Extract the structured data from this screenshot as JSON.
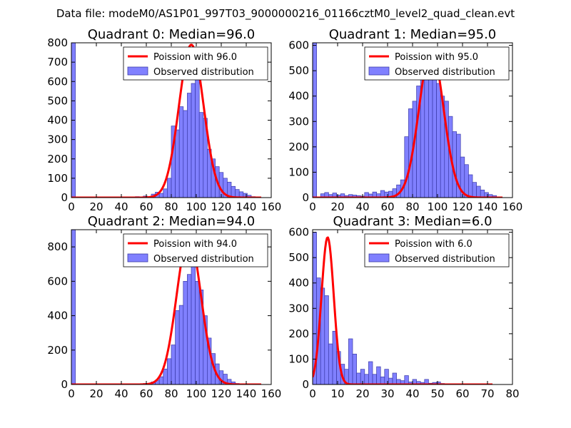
{
  "suptitle": "Data file: modeM0/AS1P01_997T03_9000000216_01166cztM0_level2_quad_clean.evt",
  "colors": {
    "bar_fill": "#8080ff",
    "bar_edge": "#3a3aa8",
    "curve": "#ff0000",
    "axis": "#000000"
  },
  "chart_data": [
    {
      "type": "bar",
      "title": "Quadrant 0: Median=96.0",
      "xlim": [
        0,
        160
      ],
      "ylim": [
        0,
        800
      ],
      "xticks": [
        0,
        20,
        40,
        60,
        80,
        100,
        120,
        140,
        160
      ],
      "yticks": [
        0,
        100,
        200,
        300,
        400,
        500,
        600,
        700,
        800
      ],
      "bin_width": 3.2,
      "bars": [
        [
          0,
          800
        ],
        [
          51.2,
          5
        ],
        [
          57.6,
          8
        ],
        [
          64,
          18
        ],
        [
          67.2,
          28
        ],
        [
          70.4,
          22
        ],
        [
          73.6,
          45
        ],
        [
          76.8,
          100
        ],
        [
          80,
          370
        ],
        [
          83.2,
          350
        ],
        [
          86.4,
          470
        ],
        [
          89.6,
          450
        ],
        [
          92.8,
          540
        ],
        [
          96,
          590
        ],
        [
          99.2,
          700
        ],
        [
          102.4,
          440
        ],
        [
          105.6,
          410
        ],
        [
          108.8,
          250
        ],
        [
          112,
          200
        ],
        [
          115.2,
          160
        ],
        [
          118.4,
          130
        ],
        [
          121.6,
          100
        ],
        [
          124.8,
          80
        ],
        [
          128,
          58
        ],
        [
          131.2,
          42
        ],
        [
          134.4,
          30
        ],
        [
          137.6,
          22
        ],
        [
          140.8,
          12
        ],
        [
          144,
          5
        ]
      ],
      "curve_mean": 96.0,
      "curve_peak": 790,
      "curve_xrange": [
        0,
        152
      ],
      "legend": {
        "curve_label": "Poission with 96.0",
        "bar_label": "Observed distribution"
      }
    },
    {
      "type": "bar",
      "title": "Quadrant 1: Median=95.0",
      "xlim": [
        0,
        160
      ],
      "ylim": [
        0,
        610
      ],
      "xticks": [
        0,
        20,
        40,
        60,
        80,
        100,
        120,
        140,
        160
      ],
      "yticks": [
        0,
        100,
        200,
        300,
        400,
        500,
        600
      ],
      "bin_width": 3.2,
      "bars": [
        [
          0,
          610
        ],
        [
          6.4,
          15
        ],
        [
          9.6,
          20
        ],
        [
          12.8,
          12
        ],
        [
          16,
          18
        ],
        [
          19.2,
          10
        ],
        [
          22.4,
          15
        ],
        [
          25.6,
          8
        ],
        [
          28.8,
          12
        ],
        [
          32,
          10
        ],
        [
          35.2,
          8
        ],
        [
          38.4,
          6
        ],
        [
          41.6,
          20
        ],
        [
          44.8,
          14
        ],
        [
          48,
          22
        ],
        [
          51.2,
          15
        ],
        [
          54.4,
          28
        ],
        [
          57.6,
          22
        ],
        [
          60.8,
          25
        ],
        [
          64,
          35
        ],
        [
          67.2,
          50
        ],
        [
          70.4,
          70
        ],
        [
          73.6,
          240
        ],
        [
          76.8,
          350
        ],
        [
          80,
          380
        ],
        [
          83.2,
          440
        ],
        [
          86.4,
          500
        ],
        [
          89.6,
          540
        ],
        [
          92.8,
          570
        ],
        [
          96,
          480
        ],
        [
          99.2,
          450
        ],
        [
          102.4,
          400
        ],
        [
          105.6,
          380
        ],
        [
          108.8,
          320
        ],
        [
          112,
          260
        ],
        [
          115.2,
          250
        ],
        [
          118.4,
          160
        ],
        [
          121.6,
          130
        ],
        [
          124.8,
          90
        ],
        [
          128,
          60
        ],
        [
          131.2,
          45
        ],
        [
          134.4,
          30
        ],
        [
          137.6,
          20
        ],
        [
          140.8,
          12
        ],
        [
          144,
          8
        ]
      ],
      "curve_mean": 95.0,
      "curve_peak": 585,
      "curve_xrange": [
        0,
        152
      ],
      "legend": {
        "curve_label": "Poission with 95.0",
        "bar_label": "Observed distribution"
      }
    },
    {
      "type": "bar",
      "title": "Quadrant 2: Median=94.0",
      "xlim": [
        0,
        160
      ],
      "ylim": [
        0,
        900
      ],
      "xticks": [
        0,
        20,
        40,
        60,
        80,
        100,
        120,
        140,
        160
      ],
      "yticks": [
        0,
        200,
        400,
        600,
        800
      ],
      "bin_width": 3.2,
      "bars": [
        [
          0,
          900
        ],
        [
          51.2,
          3
        ],
        [
          57.6,
          6
        ],
        [
          64,
          15
        ],
        [
          67.2,
          25
        ],
        [
          70.4,
          45
        ],
        [
          73.6,
          90
        ],
        [
          76.8,
          150
        ],
        [
          80,
          230
        ],
        [
          83.2,
          430
        ],
        [
          86.4,
          460
        ],
        [
          89.6,
          600
        ],
        [
          92.8,
          640
        ],
        [
          96,
          850
        ],
        [
          99.2,
          600
        ],
        [
          102.4,
          550
        ],
        [
          105.6,
          400
        ],
        [
          108.8,
          270
        ],
        [
          112,
          180
        ],
        [
          115.2,
          120
        ],
        [
          118.4,
          80
        ],
        [
          121.6,
          60
        ],
        [
          124.8,
          30
        ],
        [
          128,
          15
        ],
        [
          131.2,
          6
        ]
      ],
      "curve_mean": 94.0,
      "curve_peak": 860,
      "curve_xrange": [
        0,
        152
      ],
      "legend": {
        "curve_label": "Poission with 94.0",
        "bar_label": "Observed distribution"
      }
    },
    {
      "type": "bar",
      "title": "Quadrant 3: Median=6.0",
      "xlim": [
        0,
        80
      ],
      "ylim": [
        0,
        610
      ],
      "xticks": [
        0,
        10,
        20,
        30,
        40,
        50,
        60,
        70,
        80
      ],
      "yticks": [
        0,
        100,
        200,
        300,
        400,
        500,
        600
      ],
      "bin_width": 1.6,
      "bars": [
        [
          0,
          600
        ],
        [
          1.6,
          420
        ],
        [
          3.2,
          380
        ],
        [
          4.8,
          350
        ],
        [
          6.4,
          160
        ],
        [
          8,
          210
        ],
        [
          9.6,
          130
        ],
        [
          11.2,
          80
        ],
        [
          12.8,
          60
        ],
        [
          14.4,
          180
        ],
        [
          16,
          120
        ],
        [
          17.6,
          45
        ],
        [
          19.2,
          60
        ],
        [
          20.8,
          40
        ],
        [
          22.4,
          90
        ],
        [
          24,
          40
        ],
        [
          25.6,
          70
        ],
        [
          27.2,
          30
        ],
        [
          28.8,
          60
        ],
        [
          30.4,
          25
        ],
        [
          32,
          45
        ],
        [
          33.6,
          20
        ],
        [
          35.2,
          15
        ],
        [
          36.8,
          35
        ],
        [
          38.4,
          10
        ],
        [
          40,
          20
        ],
        [
          41.6,
          12
        ],
        [
          43.2,
          8
        ],
        [
          44.8,
          20
        ],
        [
          46.4,
          5
        ],
        [
          48,
          8
        ],
        [
          49.6,
          10
        ],
        [
          51.2,
          4
        ]
      ],
      "curve_mean": 6.0,
      "curve_peak": 580,
      "curve_xrange": [
        0,
        72
      ],
      "legend": {
        "curve_label": "Poission with 6.0",
        "bar_label": "Observed distribution"
      }
    }
  ]
}
